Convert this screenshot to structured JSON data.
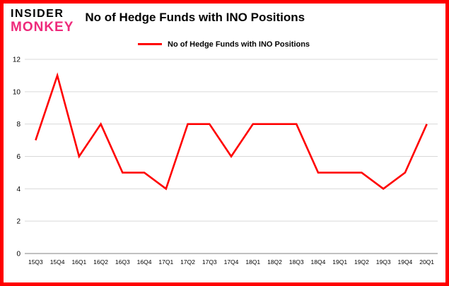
{
  "brand": {
    "line1": "INSIDER",
    "line2": "MONKEY",
    "pink": "#ee2a7b"
  },
  "header": {
    "title": "No of Hedge Funds with INO Positions"
  },
  "legend": {
    "label": "No of Hedge Funds with INO Positions"
  },
  "colors": {
    "line": "#ff0000",
    "border": "#ff0000",
    "grid": "#d9d9d9",
    "axis": "#808080",
    "text": "#000000"
  },
  "chart_data": {
    "type": "line",
    "categories": [
      "15Q3",
      "15Q4",
      "16Q1",
      "16Q2",
      "16Q3",
      "16Q4",
      "17Q1",
      "17Q2",
      "17Q3",
      "17Q4",
      "18Q1",
      "18Q2",
      "18Q3",
      "18Q4",
      "19Q1",
      "19Q2",
      "19Q3",
      "19Q4",
      "20Q1"
    ],
    "values": [
      7,
      11,
      6,
      8,
      5,
      5,
      4,
      8,
      8,
      6,
      8,
      8,
      8,
      5,
      5,
      5,
      4,
      5,
      8
    ],
    "title": "No of Hedge Funds with INO Positions",
    "xlabel": "",
    "ylabel": "",
    "ylim": [
      0,
      12
    ],
    "ytick_step": 2,
    "grid": true,
    "legend_position": "top-left",
    "series": [
      {
        "name": "No of Hedge Funds with INO Positions",
        "values": [
          7,
          11,
          6,
          8,
          5,
          5,
          4,
          8,
          8,
          6,
          8,
          8,
          8,
          5,
          5,
          5,
          4,
          5,
          8
        ]
      }
    ]
  }
}
